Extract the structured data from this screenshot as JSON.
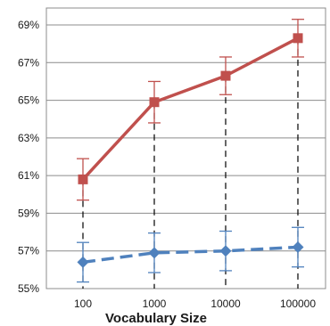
{
  "chart_data": {
    "type": "line",
    "title": "",
    "xlabel": "Vocabulary Size",
    "ylabel": "",
    "categories": [
      "100",
      "1000",
      "10000",
      "100000"
    ],
    "y_ticks": [
      "55%",
      "57%",
      "59%",
      "61%",
      "63%",
      "65%",
      "67%",
      "69%"
    ],
    "ylim": [
      55,
      69.9
    ],
    "grid": true,
    "legend": "none",
    "series": [
      {
        "color": "#c0504d",
        "marker": "square",
        "line_style": "solid",
        "values": [
          60.8,
          64.9,
          66.3,
          68.3
        ],
        "error": [
          1.1,
          1.1,
          1.0,
          1.0
        ]
      },
      {
        "color": "#4f81bd",
        "marker": "diamond",
        "line_style": "dashed",
        "values": [
          56.4,
          56.9,
          57.0,
          57.2
        ],
        "error": [
          1.05,
          1.05,
          1.05,
          1.05
        ]
      }
    ],
    "drop_lines": true
  }
}
